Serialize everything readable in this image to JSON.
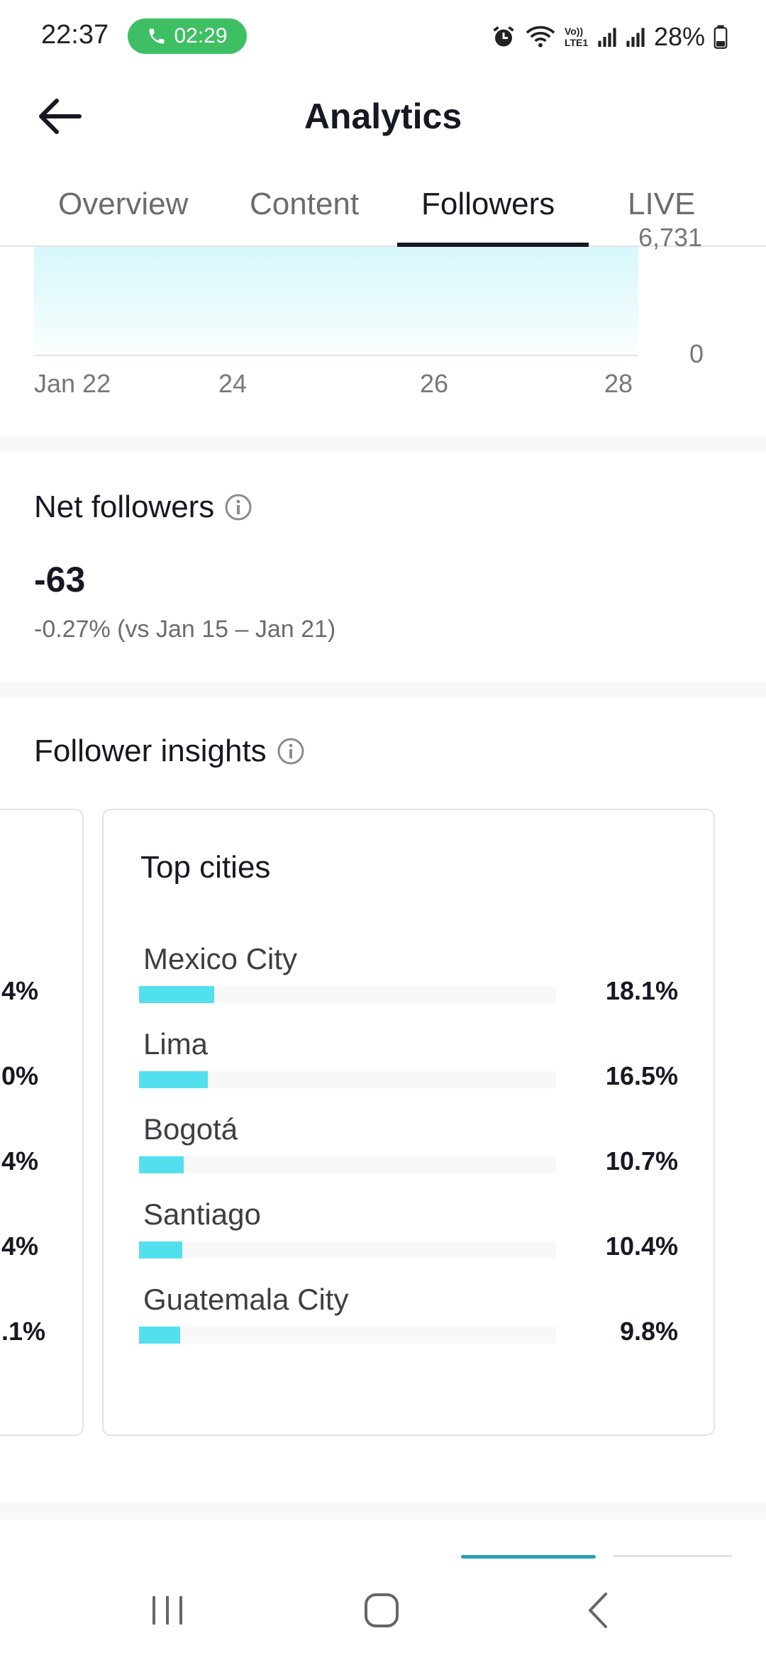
{
  "status_bar": {
    "time": "22:37",
    "call_duration": "02:29",
    "battery": "28%",
    "network_label": "Vo)) LTE1"
  },
  "header": {
    "title": "Analytics"
  },
  "tabs": [
    {
      "label": "Overview",
      "active": false
    },
    {
      "label": "Content",
      "active": false
    },
    {
      "label": "Followers",
      "active": true
    },
    {
      "label": "LIVE",
      "active": false
    }
  ],
  "chart": {
    "y_tick_top": "6,731",
    "y_tick_zero": "0",
    "x_ticks": [
      "Jan 22",
      "24",
      "26",
      "28"
    ]
  },
  "net_followers": {
    "title": "Net followers",
    "value": "-63",
    "comparison": "-0.27% (vs Jan 15 – Jan 21)"
  },
  "follower_insights": {
    "title": "Follower insights",
    "previous_card_percentages": [
      "4%",
      "0%",
      "4%",
      "4%",
      ".1%"
    ],
    "top_cities": {
      "title": "Top cities",
      "items": [
        {
          "name": "Mexico City",
          "percent": "18.1%",
          "value": 18.1
        },
        {
          "name": "Lima",
          "percent": "16.5%",
          "value": 16.5
        },
        {
          "name": "Bogotá",
          "percent": "10.7%",
          "value": 10.7
        },
        {
          "name": "Santiago",
          "percent": "10.4%",
          "value": 10.4
        },
        {
          "name": "Guatemala City",
          "percent": "9.8%",
          "value": 9.8
        }
      ]
    }
  },
  "colors": {
    "accent_bar": "#52dfee",
    "call_pill": "#3fbf64",
    "chart_fill": "#d7f8fb"
  },
  "icons": {
    "back": "arrow-left-icon",
    "info": "info-circle-icon",
    "nav_recent": "recent-apps-icon",
    "nav_home": "home-icon",
    "nav_back": "nav-back-icon"
  }
}
